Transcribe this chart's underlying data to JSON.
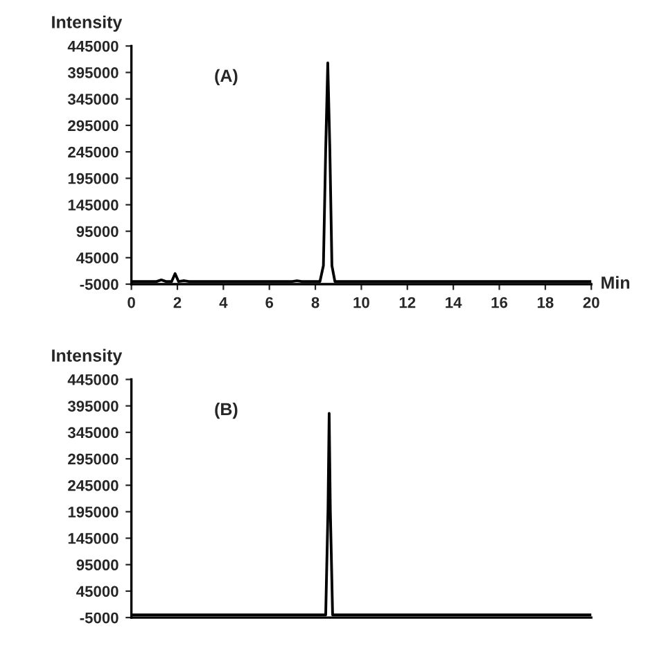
{
  "chart_data": [
    {
      "type": "line",
      "ylabel": "Intensity",
      "xlabel": "Min",
      "annotations": [
        "(A)"
      ],
      "xlim": [
        0,
        20
      ],
      "xticks": [
        0,
        2,
        4,
        6,
        8,
        10,
        12,
        14,
        16,
        18,
        20
      ],
      "ylim": [
        -5000,
        445000
      ],
      "yticks": [
        -5000,
        45000,
        95000,
        145000,
        195000,
        245000,
        295000,
        345000,
        395000,
        445000
      ],
      "series": [
        {
          "color": "#000000",
          "x": [
            0,
            1.1,
            1.3,
            1.5,
            1.75,
            1.9,
            2.05,
            2.3,
            2.5,
            4,
            7,
            7.2,
            7.4,
            8.2,
            8.35,
            8.45,
            8.54,
            8.63,
            8.72,
            8.85,
            10,
            20
          ],
          "values": [
            0,
            0,
            3000,
            0,
            0,
            15000,
            0,
            1500,
            0,
            0,
            0,
            1500,
            0,
            0,
            30000,
            250000,
            413000,
            250000,
            30000,
            0,
            0,
            0
          ]
        }
      ],
      "grid": false,
      "legend": false
    },
    {
      "type": "line",
      "ylabel": "Intensity",
      "annotations": [
        "(B)"
      ],
      "xlim": [
        0,
        20
      ],
      "tick_labels": "y",
      "ylim": [
        -5000,
        445000
      ],
      "yticks": [
        -5000,
        45000,
        95000,
        145000,
        195000,
        245000,
        295000,
        345000,
        395000,
        445000
      ],
      "series": [
        {
          "color": "#000000",
          "x": [
            0,
            8.45,
            8.55,
            8.6,
            8.65,
            8.75,
            20
          ],
          "values": [
            0,
            0,
            200000,
            381000,
            200000,
            0,
            0
          ]
        }
      ],
      "grid": false,
      "legend": false
    }
  ]
}
